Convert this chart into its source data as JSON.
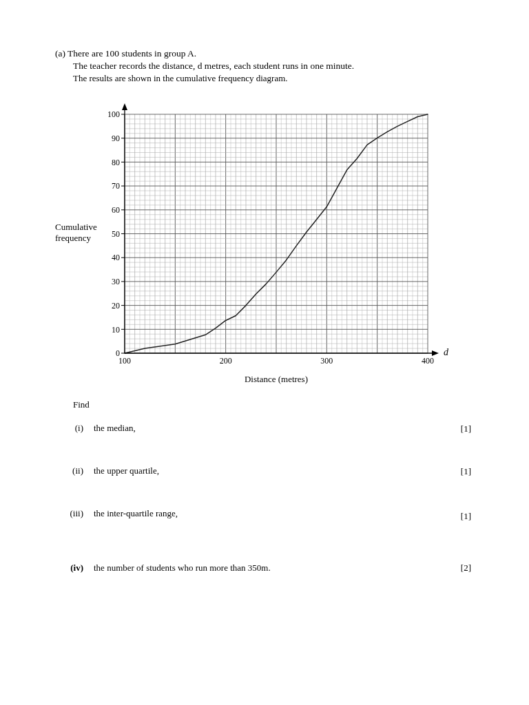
{
  "chart_data": {
    "type": "line",
    "title": "(a) There are 100 students in group A.",
    "subtitle": "The teacher records the distance, d metres, each student runs in one minute.",
    "xlabel": "Distance (metres)",
    "ylabel": "Cumulative frequency",
    "annotations": [
      "The results are shown in the cumulative frequency diagram.",
      "d",
      "Find",
      "(i)",
      "the median,",
      "[1]",
      "(ii)",
      "the upper quartile,",
      "[1]",
      "(iii)",
      "the inter-quartile range,",
      "[1]",
      "(iv)",
      "the number of students who run more than 350m.",
      "[2]"
    ],
    "x": [
      100,
      120,
      150,
      180,
      190,
      200,
      210,
      220,
      230,
      240,
      250,
      260,
      270,
      280,
      290,
      300,
      310,
      320,
      330,
      340,
      350,
      360,
      370,
      380,
      390,
      400
    ],
    "series": [
      {
        "color": "#222222",
        "values": [
          0,
          2,
          3.8,
          7.7,
          10.5,
          13.7,
          15.7,
          20,
          24.8,
          29,
          33.9,
          39,
          45,
          50.7,
          56,
          61.3,
          69,
          76.7,
          81.5,
          87.2,
          90.1,
          92.7,
          95,
          97,
          99,
          100
        ]
      }
    ],
    "xlim": [
      100,
      400
    ],
    "ylim": [
      0,
      100
    ],
    "xticks": [
      100,
      200,
      300,
      400
    ],
    "yticks": [
      0,
      10,
      20,
      30,
      40,
      50,
      60,
      70,
      80,
      90,
      100
    ],
    "grid": true,
    "marker": "none",
    "line_style": "solid"
  }
}
